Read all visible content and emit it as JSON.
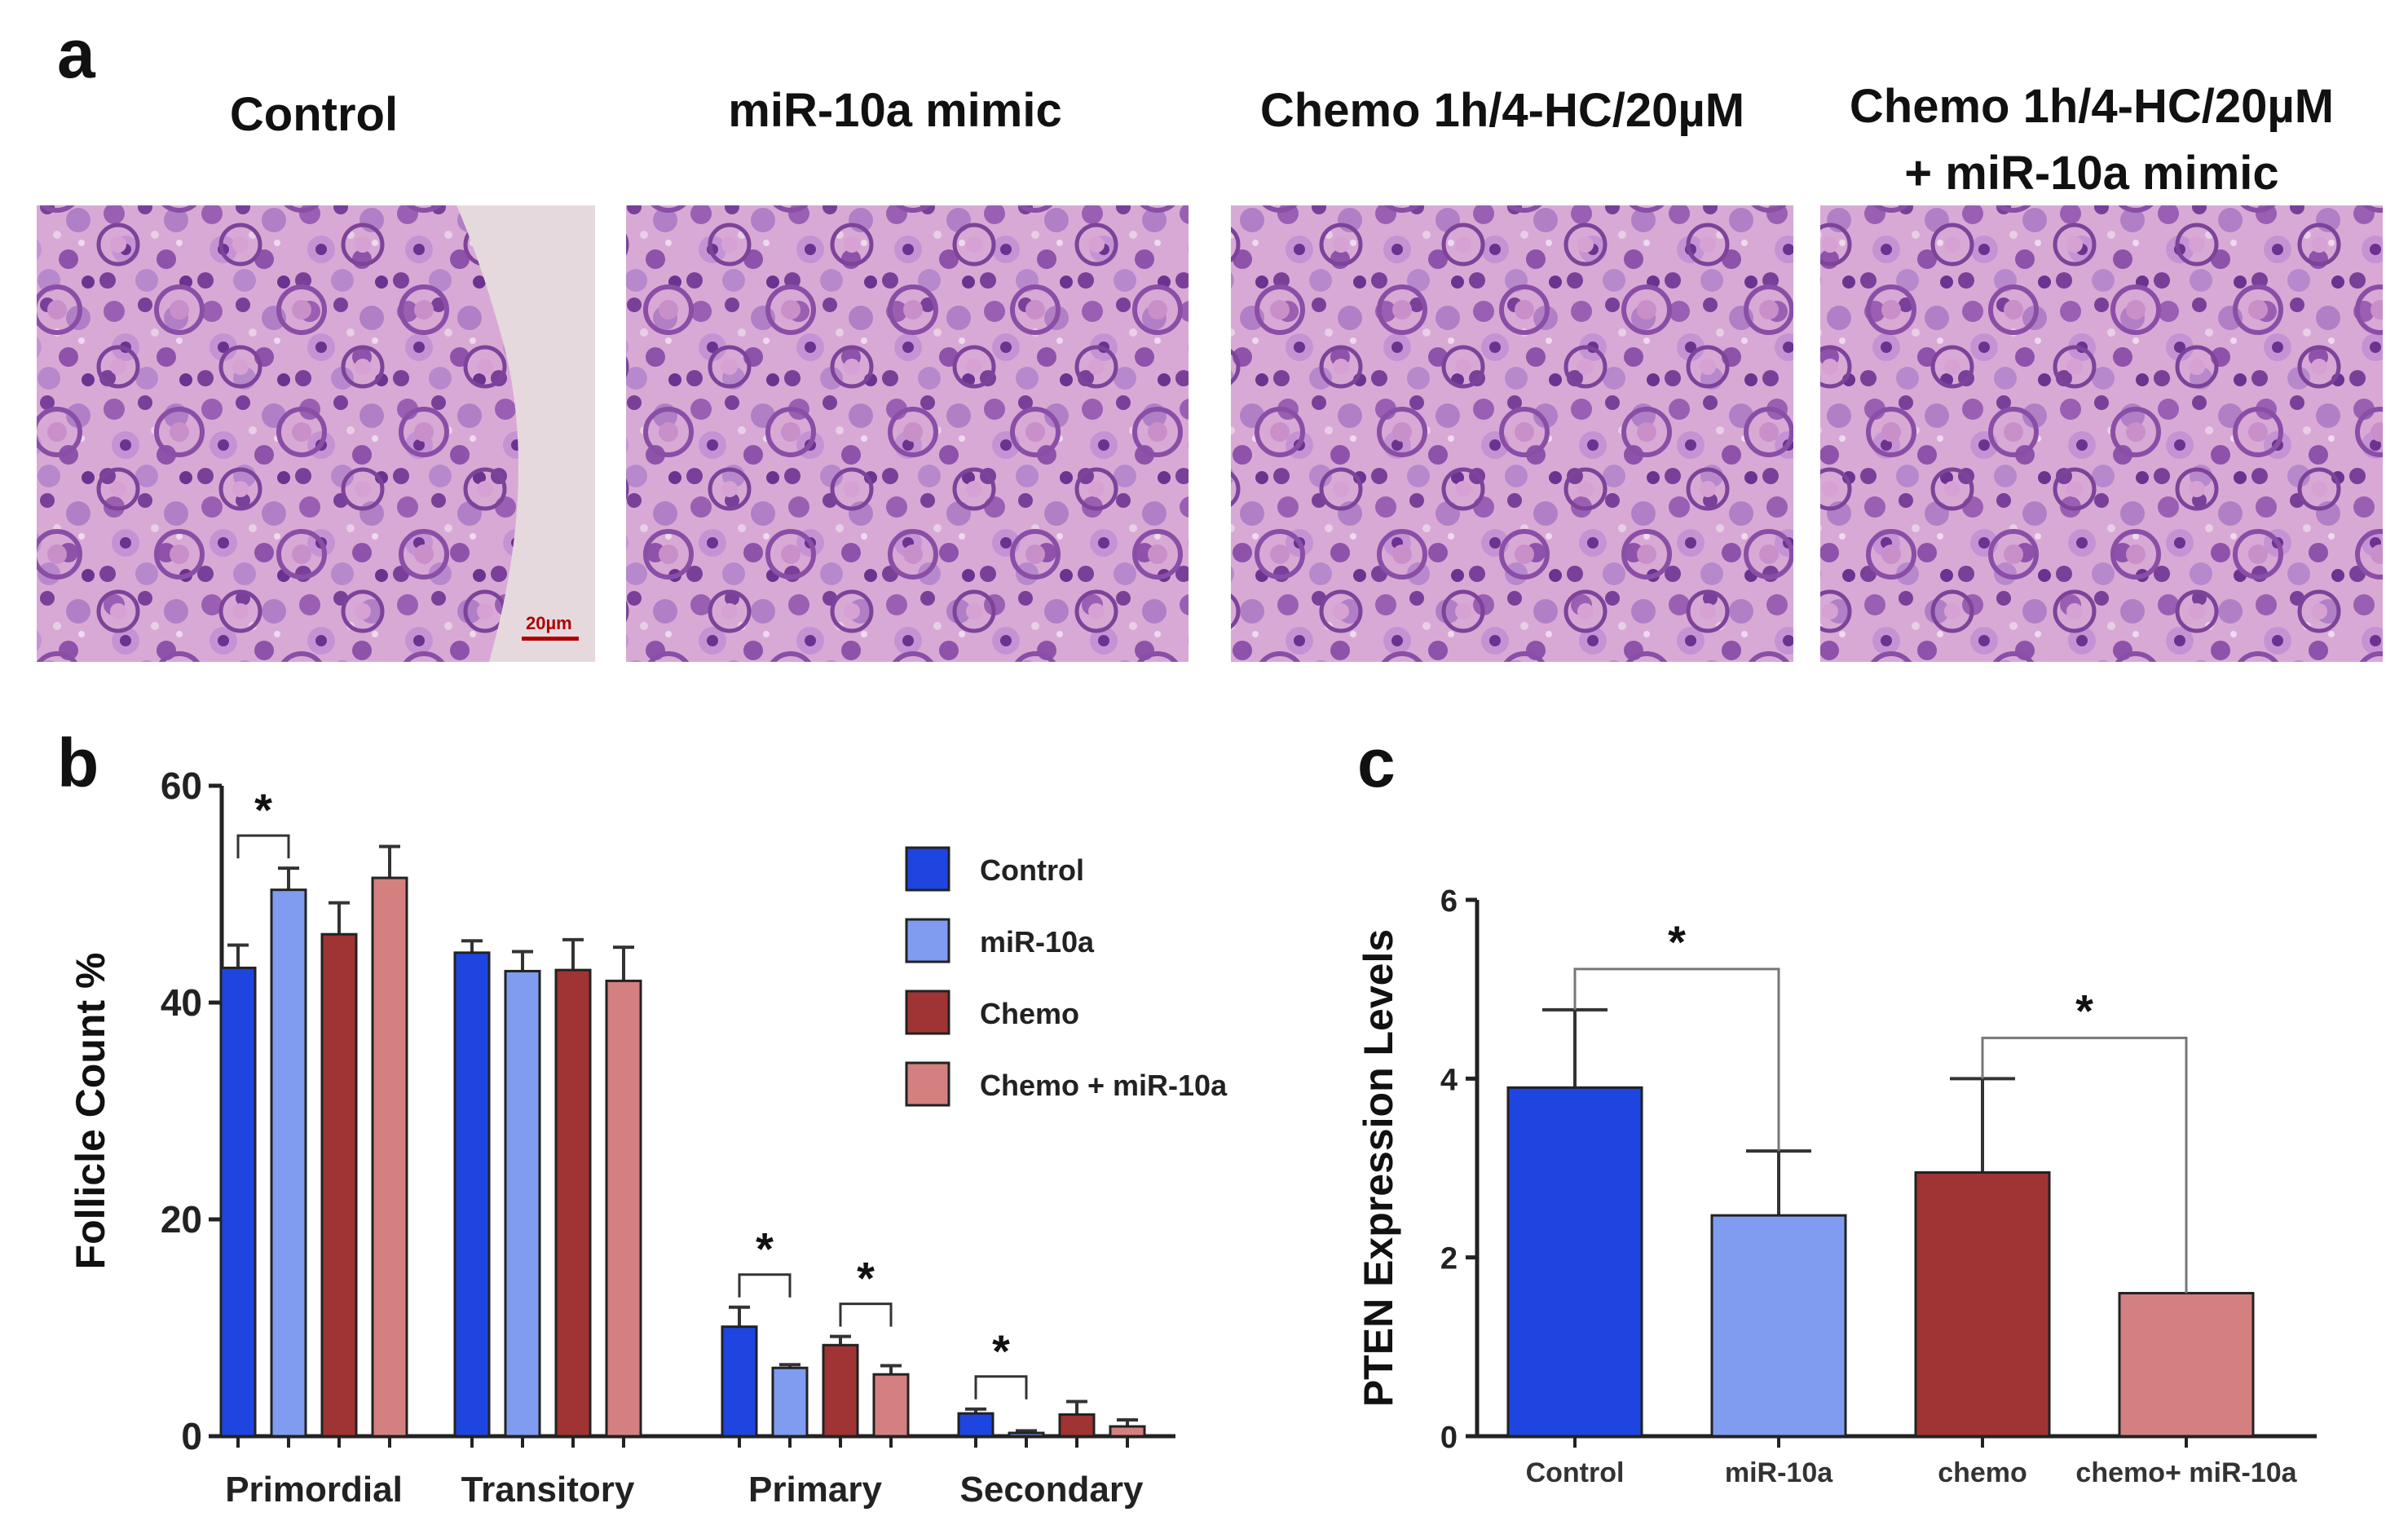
{
  "figure": {
    "panel_a_letter": "a",
    "panel_b_letter": "b",
    "panel_c_letter": "c"
  },
  "panel_a": {
    "images": [
      {
        "title_lines": [
          "Control"
        ],
        "scalebar": "20µm"
      },
      {
        "title_lines": [
          "miR-10a mimic"
        ]
      },
      {
        "title_lines": [
          "Chemo 1h/4-HC/20µM"
        ]
      },
      {
        "title_lines": [
          "Chemo 1h/4-HC/20µM",
          "+ miR-10a mimic"
        ]
      }
    ]
  },
  "chart_data": [
    {
      "type": "bar",
      "panel": "b",
      "categories": [
        "Primordial",
        "Transitory",
        "Primary",
        "Secondary"
      ],
      "ylabel": "Follicle Count %",
      "xlabel": "",
      "ylim": [
        0,
        60
      ],
      "yticks": [
        0,
        20,
        40,
        60
      ],
      "legend": "right",
      "series": [
        {
          "name": "Control",
          "color": "#1f45e0",
          "values": [
            43.2,
            44.6,
            10.1,
            2.1
          ],
          "errors": [
            2.1,
            1.1,
            1.8,
            0.4
          ]
        },
        {
          "name": "miR-10a",
          "color": "#7f9cf0",
          "values": [
            50.4,
            42.9,
            6.3,
            0.3
          ],
          "errors": [
            2.0,
            1.8,
            0.3,
            0.2
          ]
        },
        {
          "name": "Chemo",
          "color": "#a03434",
          "values": [
            46.3,
            43.0,
            8.4,
            2.0
          ],
          "errors": [
            2.9,
            2.8,
            0.8,
            1.2
          ]
        },
        {
          "name": "Chemo + miR-10a",
          "color": "#d48080",
          "values": [
            51.5,
            42.0,
            5.7,
            0.9
          ],
          "errors": [
            2.9,
            3.1,
            0.8,
            0.6
          ]
        }
      ],
      "significance": [
        {
          "category": 0,
          "from": 0,
          "to": 1,
          "label": "*"
        },
        {
          "category": 2,
          "from": 0,
          "to": 1,
          "label": "*"
        },
        {
          "category": 2,
          "from": 2,
          "to": 3,
          "label": "*"
        },
        {
          "category": 3,
          "from": 0,
          "to": 1,
          "label": "*"
        }
      ]
    },
    {
      "type": "bar",
      "panel": "c",
      "categories": [
        "Control",
        "miR-10a",
        "chemo",
        "chemo+ miR-10a"
      ],
      "values": [
        3.9,
        2.47,
        2.95,
        1.6
      ],
      "errors": [
        0.87,
        0.72,
        1.05,
        0
      ],
      "colors": [
        "#1f45e0",
        "#7f9cf0",
        "#a03434",
        "#d48080"
      ],
      "ylabel": "PTEN Expression Levels",
      "xlabel": "",
      "ylim": [
        0,
        6
      ],
      "yticks": [
        0,
        2,
        4,
        6
      ],
      "significance": [
        {
          "from": 0,
          "to": 1,
          "label": "*"
        },
        {
          "from": 2,
          "to": 3,
          "label": "*"
        }
      ]
    }
  ]
}
